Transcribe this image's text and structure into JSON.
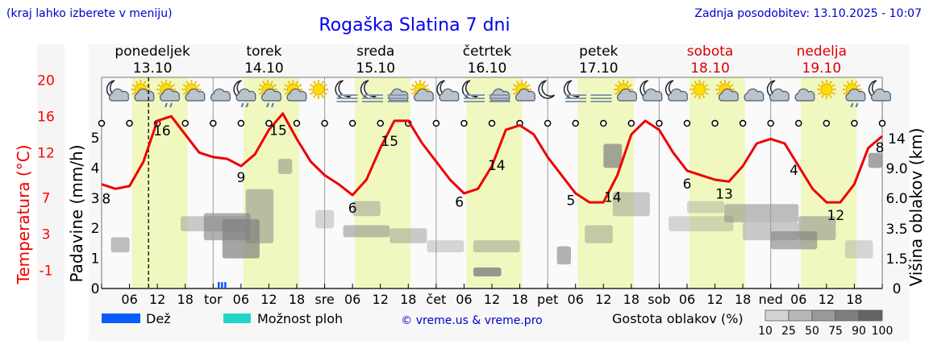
{
  "header": {
    "hint": "(kraj lahko izberete v meniju)",
    "title": "Rogaška Slatina 7 dni",
    "updated": "Zadnja posodobitev: 13.10.2025 - 10:07"
  },
  "days": [
    {
      "name": "ponedeljek",
      "date": "13.10",
      "weekend": false
    },
    {
      "name": "torek",
      "date": "14.10",
      "weekend": false
    },
    {
      "name": "sreda",
      "date": "15.10",
      "weekend": false
    },
    {
      "name": "četrtek",
      "date": "16.10",
      "weekend": false
    },
    {
      "name": "petek",
      "date": "17.10",
      "weekend": false
    },
    {
      "name": "sobota",
      "date": "18.10",
      "weekend": true
    },
    {
      "name": "nedelja",
      "date": "19.10",
      "weekend": true
    }
  ],
  "colors": {
    "temperature": "#ff0000",
    "title": "#0000ee",
    "rain": "#0a5cff",
    "possible_showers": "#1fd6c8",
    "daylight": "#f0f8c0",
    "weekend": "#dd0000"
  },
  "icons": [
    "night-cloudy-icon",
    "sun-cloud-icon",
    "sun-cloud-rain-icon",
    "sun-cloud-icon",
    "cloudy-icon",
    "night-cloudy-drizzle-icon",
    "sun-cloud-drizzle-icon",
    "sun-cloud-icon",
    "sun-icon",
    "night-fog-icon",
    "night-fog-icon",
    "fog-cloud-icon",
    "sun-cloud-icon",
    "night-cloudy-icon",
    "night-fog-icon",
    "fog-cloud-icon",
    "sun-cloud-icon",
    "moon-icon",
    "night-fog-icon",
    "fog-icon",
    "sun-cloud-icon",
    "night-cloudy-icon",
    "night-cloudy-icon",
    "sun-icon",
    "sun-cloud-icon",
    "cloudy-icon",
    "night-cloudy-icon",
    "cloudy-icon",
    "sun-icon",
    "sun-cloud-rain-icon",
    "night-cloudy-icon"
  ],
  "chart_data": {
    "type": "line",
    "x_tick_labels": [
      "06",
      "12",
      "18",
      "tor",
      "06",
      "12",
      "18",
      "sre",
      "06",
      "12",
      "18",
      "čet",
      "06",
      "12",
      "18",
      "pet",
      "06",
      "12",
      "18",
      "sob",
      "06",
      "12",
      "18",
      "ned",
      "06",
      "12",
      "18"
    ],
    "series": [
      {
        "name": "Temperatura",
        "axis": "left",
        "x_hours": [
          0,
          3,
          6,
          9,
          12,
          15,
          18,
          21,
          24,
          27,
          30,
          33,
          36,
          39,
          42,
          45,
          48,
          51,
          54,
          57,
          60,
          63,
          66,
          69,
          72,
          75,
          78,
          81,
          84,
          87,
          90,
          93,
          96,
          99,
          102,
          105,
          108,
          111,
          114,
          117,
          120,
          123,
          126,
          129,
          132,
          135,
          138,
          141,
          144,
          147,
          150,
          153,
          156,
          159,
          162,
          165,
          168
        ],
        "values": [
          8.5,
          8,
          8.3,
          11,
          15.5,
          16,
          14,
          12,
          11.5,
          11.3,
          10.5,
          11.8,
          14.5,
          16.3,
          13.5,
          11,
          9.5,
          8.5,
          7.3,
          9,
          12.5,
          15.5,
          15.5,
          13,
          11,
          9,
          7.5,
          8,
          10.5,
          14.5,
          15,
          14,
          11.5,
          9.5,
          7.5,
          6.5,
          6.5,
          9.5,
          14,
          15.5,
          14.5,
          12,
          10,
          9.5,
          9,
          8.8,
          10.5,
          13,
          13.5,
          13,
          10.5,
          8,
          6.5,
          6.5,
          8.5,
          12.5,
          13.8
        ]
      }
    ],
    "point_labels": [
      {
        "text": "8",
        "hour": 1
      },
      {
        "text": "16",
        "hour": 13
      },
      {
        "text": "9",
        "hour": 30
      },
      {
        "text": "15",
        "hour": 38
      },
      {
        "text": "6",
        "hour": 54
      },
      {
        "text": "15",
        "hour": 62
      },
      {
        "text": "6",
        "hour": 77
      },
      {
        "text": "14",
        "hour": 85
      },
      {
        "text": "5",
        "hour": 101
      },
      {
        "text": "14",
        "hour": 110
      },
      {
        "text": "6",
        "hour": 126
      },
      {
        "text": "13",
        "hour": 134
      },
      {
        "text": "4",
        "hour": 149
      },
      {
        "text": "12",
        "hour": 158
      },
      {
        "text": "8",
        "hour": 168
      }
    ],
    "y_left_temperature": {
      "label": "Temperatura (°C)",
      "ticks": [
        "20",
        "16",
        "12",
        "7",
        "3",
        "-1"
      ]
    },
    "y_left_precipitation": {
      "label": "Padavine (mm/h)",
      "ticks": [
        "0",
        "1",
        "2",
        "3",
        "4",
        "5"
      ]
    },
    "y_right_clouds": {
      "label": "Višina oblakov (km)",
      "ticks": [
        "0",
        "1.5",
        "3.5",
        "6.0",
        "9.0",
        "14"
      ]
    },
    "current_time_hour": 10.1,
    "precipitation_hours": [
      {
        "start": 25,
        "end": 27
      }
    ],
    "legend": {
      "rain": "Dež",
      "possible_showers": "Možnost ploh",
      "credit": "© vreme.us & vreme.pro",
      "density_label": "Gostota oblakov (%)",
      "density_steps": [
        "10",
        "25",
        "50",
        "75",
        "90",
        "100"
      ]
    },
    "grid": false,
    "legend_placement": "bottom"
  }
}
